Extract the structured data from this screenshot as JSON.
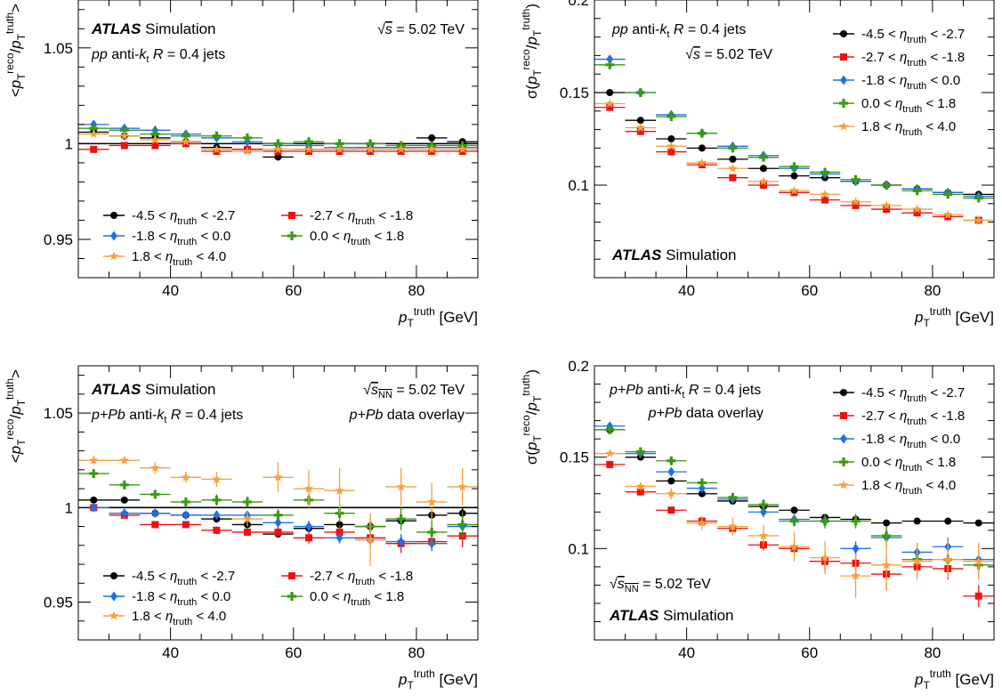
{
  "chart_data": [
    {
      "id": "tl",
      "type": "scatter",
      "ylabel_markup": "<p_T^{reco}/p_T^{truth}>",
      "xlabel_markup": "p_T^{truth} [GeV]",
      "xlim": [
        25,
        90
      ],
      "ylim": [
        0.93,
        1.075
      ],
      "xticks": [
        40,
        60,
        80
      ],
      "yticks": [
        0.95,
        1,
        1.05
      ],
      "ytick_labels": [
        "0.95",
        "1",
        "1.05"
      ],
      "reference_line": 1.0,
      "annotations": {
        "atlas": "ATLAS",
        "simulation": "Simulation",
        "energy": "√s = 5.02 TeV",
        "jets": "pp anti-kt R = 0.4 jets"
      },
      "legend": {
        "placement": "lower-left",
        "columns": 2,
        "entries": [
          {
            "label": "-4.5 < η_truth < -2.7",
            "series": 0
          },
          {
            "label": "-2.7 < η_truth < -1.8",
            "series": 1
          },
          {
            "label": "-1.8 < η_truth < 0.0",
            "series": 2
          },
          {
            "label": "0.0 < η_truth < 1.8",
            "series": 3
          },
          {
            "label": "1.8 < η_truth < 4.0",
            "series": 4
          }
        ]
      },
      "x": [
        27.5,
        32.5,
        37.5,
        42.5,
        47.5,
        52.5,
        57.5,
        62.5,
        67.5,
        72.5,
        77.5,
        82.5,
        87.5
      ],
      "series": [
        {
          "name": "-4.5 < η_truth < -2.7",
          "color": "#000000",
          "marker": "circle",
          "values": [
            1.006,
            1.004,
            1.003,
            1.001,
            0.998,
            0.997,
            0.993,
            0.997,
            0.997,
            0.998,
            0.998,
            1.003,
            1.001
          ]
        },
        {
          "name": "-2.7 < η_truth < -1.8",
          "color": "#ee1111",
          "marker": "square",
          "values": [
            0.997,
            0.999,
            0.999,
            1.0,
            0.996,
            0.997,
            0.996,
            0.996,
            0.996,
            0.996,
            0.996,
            0.996,
            0.996
          ]
        },
        {
          "name": "-1.8 < η_truth < 0.0",
          "color": "#1f6fe8",
          "marker": "diamond",
          "values": [
            1.01,
            1.008,
            1.007,
            1.005,
            1.003,
            1.001,
            0.999,
            0.999,
            0.998,
            0.998,
            0.998,
            0.998,
            0.998
          ]
        },
        {
          "name": "0.0 < η_truth < 1.8",
          "color": "#3b9a14",
          "marker": "cross",
          "values": [
            1.008,
            1.007,
            1.005,
            1.004,
            1.004,
            1.003,
            1.0,
            1.001,
            1.0,
            1.0,
            0.999,
            0.999,
            0.999
          ]
        },
        {
          "name": "1.8 < η_truth < 4.0",
          "color": "#f5a040",
          "marker": "star",
          "values": [
            1.005,
            1.004,
            1.002,
            1.001,
            0.997,
            0.996,
            0.997,
            0.997,
            0.997,
            0.997,
            0.997,
            0.997,
            0.997
          ]
        }
      ]
    },
    {
      "id": "tr",
      "type": "scatter",
      "ylabel_markup": "σ(p_T^{reco}/p_T^{truth})",
      "xlabel_markup": "p_T^{truth} [GeV]",
      "xlim": [
        25,
        90
      ],
      "ylim": [
        0.05,
        0.2
      ],
      "xticks": [
        40,
        60,
        80
      ],
      "yticks": [
        0.1,
        0.15,
        0.2
      ],
      "ytick_labels": [
        "0.1",
        "0.15",
        "0.2"
      ],
      "annotations": {
        "jets": "pp anti-kt R = 0.4 jets",
        "energy": "√s = 5.02 TeV",
        "atlas": "ATLAS",
        "simulation": "Simulation"
      },
      "legend": {
        "placement": "top-right",
        "columns": 1,
        "entries": [
          {
            "label": "-4.5 < η_truth < -2.7",
            "series": 0
          },
          {
            "label": "-2.7 < η_truth < -1.8",
            "series": 1
          },
          {
            "label": "-1.8 < η_truth < 0.0",
            "series": 2
          },
          {
            "label": "0.0 < η_truth < 1.8",
            "series": 3
          },
          {
            "label": "1.8 < η_truth < 4.0",
            "series": 4
          }
        ]
      },
      "x": [
        27.5,
        32.5,
        37.5,
        42.5,
        47.5,
        52.5,
        57.5,
        62.5,
        67.5,
        72.5,
        77.5,
        82.5,
        87.5
      ],
      "series": [
        {
          "name": "-4.5 < η_truth < -2.7",
          "color": "#000000",
          "marker": "circle",
          "values": [
            0.15,
            0.135,
            0.125,
            0.12,
            0.114,
            0.109,
            0.105,
            0.104,
            0.102,
            0.1,
            0.098,
            0.096,
            0.095
          ]
        },
        {
          "name": "-2.7 < η_truth < -1.8",
          "color": "#ee1111",
          "marker": "square",
          "values": [
            0.142,
            0.129,
            0.118,
            0.111,
            0.104,
            0.1,
            0.096,
            0.092,
            0.089,
            0.087,
            0.085,
            0.083,
            0.081
          ]
        },
        {
          "name": "-1.8 < η_truth < 0.0",
          "color": "#1f6fe8",
          "marker": "diamond",
          "values": [
            0.168,
            0.15,
            0.138,
            0.128,
            0.121,
            0.116,
            0.109,
            0.106,
            0.102,
            0.1,
            0.098,
            0.096,
            0.094
          ]
        },
        {
          "name": "0.0 < η_truth < 1.8",
          "color": "#3b9a14",
          "marker": "cross",
          "values": [
            0.165,
            0.15,
            0.137,
            0.128,
            0.12,
            0.115,
            0.11,
            0.107,
            0.103,
            0.1,
            0.097,
            0.095,
            0.093
          ]
        },
        {
          "name": "1.8 < η_truth < 4.0",
          "color": "#f5a040",
          "marker": "star",
          "values": [
            0.144,
            0.131,
            0.121,
            0.112,
            0.109,
            0.102,
            0.097,
            0.095,
            0.091,
            0.089,
            0.087,
            0.084,
            0.081
          ]
        }
      ]
    },
    {
      "id": "bl",
      "type": "scatter",
      "ylabel_markup": "<p_T^{reco}/p_T^{truth}>",
      "xlabel_markup": "p_T^{truth} [GeV]",
      "xlim": [
        25,
        90
      ],
      "ylim": [
        0.93,
        1.075
      ],
      "xticks": [
        40,
        60,
        80
      ],
      "yticks": [
        0.95,
        1,
        1.05
      ],
      "ytick_labels": [
        "0.95",
        "1",
        "1.05"
      ],
      "reference_line": 1.0,
      "annotations": {
        "atlas": "ATLAS",
        "simulation": "Simulation",
        "energy": "√s_NN = 5.02 TeV",
        "jets": "p+Pb anti-kt R = 0.4 jets",
        "overlay": "p+Pb data overlay"
      },
      "legend": {
        "placement": "lower-left",
        "columns": 2,
        "entries": [
          {
            "label": "-4.5 < η_truth < -2.7",
            "series": 0
          },
          {
            "label": "-2.7 < η_truth < -1.8",
            "series": 1
          },
          {
            "label": "-1.8 < η_truth < 0.0",
            "series": 2
          },
          {
            "label": "0.0 < η_truth < 1.8",
            "series": 3
          },
          {
            "label": "1.8 < η_truth < 4.0",
            "series": 4
          }
        ]
      },
      "x": [
        27.5,
        32.5,
        37.5,
        42.5,
        47.5,
        52.5,
        57.5,
        62.5,
        67.5,
        72.5,
        77.5,
        82.5,
        87.5
      ],
      "series": [
        {
          "name": "-4.5 < η_truth < -2.7",
          "color": "#000000",
          "marker": "circle",
          "values": [
            1.004,
            1.004,
            0.997,
            0.996,
            0.994,
            0.991,
            0.986,
            0.989,
            0.991,
            0.99,
            0.993,
            0.996,
            0.997
          ],
          "errors": [
            0.001,
            0.001,
            0.001,
            0.001,
            0.002,
            0.002,
            0.002,
            0.002,
            0.002,
            0.003,
            0.003,
            0.003,
            0.003
          ]
        },
        {
          "name": "-2.7 < η_truth < -1.8",
          "color": "#ee1111",
          "marker": "square",
          "values": [
            1.0,
            0.996,
            0.991,
            0.991,
            0.988,
            0.987,
            0.987,
            0.984,
            0.987,
            0.984,
            0.981,
            0.982,
            0.985
          ],
          "errors": [
            0.001,
            0.001,
            0.001,
            0.001,
            0.002,
            0.002,
            0.003,
            0.003,
            0.004,
            0.005,
            0.005,
            0.005,
            0.006
          ]
        },
        {
          "name": "-1.8 < η_truth < 0.0",
          "color": "#1f6fe8",
          "marker": "diamond",
          "values": [
            1.0,
            0.997,
            0.997,
            0.996,
            0.996,
            0.996,
            0.992,
            0.99,
            0.984,
            0.983,
            0.982,
            0.981,
            0.99
          ],
          "errors": [
            0.001,
            0.001,
            0.001,
            0.001,
            0.002,
            0.002,
            0.002,
            0.003,
            0.003,
            0.003,
            0.004,
            0.004,
            0.004
          ]
        },
        {
          "name": "0.0 < η_truth < 1.8",
          "color": "#3b9a14",
          "marker": "cross",
          "values": [
            1.018,
            1.012,
            1.007,
            1.003,
            1.004,
            1.003,
            0.996,
            1.004,
            0.997,
            0.99,
            0.994,
            0.987,
            0.991
          ],
          "errors": [
            0.002,
            0.002,
            0.002,
            0.002,
            0.003,
            0.003,
            0.003,
            0.004,
            0.005,
            0.006,
            0.006,
            0.007,
            0.007
          ]
        },
        {
          "name": "1.8 < η_truth < 4.0",
          "color": "#f5a040",
          "marker": "star",
          "values": [
            1.025,
            1.025,
            1.021,
            1.016,
            1.015,
            0.994,
            1.016,
            1.01,
            1.009,
            0.983,
            1.011,
            1.003,
            1.011
          ],
          "errors": [
            0.002,
            0.002,
            0.003,
            0.003,
            0.004,
            0.004,
            0.008,
            0.01,
            0.012,
            0.014,
            0.01,
            0.01,
            0.01
          ]
        }
      ]
    },
    {
      "id": "br",
      "type": "scatter",
      "ylabel_markup": "σ(p_T^{reco}/p_T^{truth})",
      "xlabel_markup": "p_T^{truth} [GeV]",
      "xlim": [
        25,
        90
      ],
      "ylim": [
        0.05,
        0.2
      ],
      "xticks": [
        40,
        60,
        80
      ],
      "yticks": [
        0.1,
        0.15,
        0.2
      ],
      "ytick_labels": [
        "0.1",
        "0.15",
        "0.2"
      ],
      "annotations": {
        "jets": "p+Pb anti-kt R = 0.4 jets",
        "overlay": "p+Pb data overlay",
        "energy": "√s_NN = 5.02 TeV",
        "atlas": "ATLAS",
        "simulation": "Simulation"
      },
      "legend": {
        "placement": "top-right",
        "columns": 1,
        "entries": [
          {
            "label": "-4.5 < η_truth < -2.7",
            "series": 0
          },
          {
            "label": "-2.7 < η_truth < -1.8",
            "series": 1
          },
          {
            "label": "-1.8 < η_truth < 0.0",
            "series": 2
          },
          {
            "label": "0.0 < η_truth < 1.8",
            "series": 3
          },
          {
            "label": "1.8 < η_truth < 4.0",
            "series": 4
          }
        ]
      },
      "x": [
        27.5,
        32.5,
        37.5,
        42.5,
        47.5,
        52.5,
        57.5,
        62.5,
        67.5,
        72.5,
        77.5,
        82.5,
        87.5
      ],
      "series": [
        {
          "name": "-4.5 < η_truth < -2.7",
          "color": "#000000",
          "marker": "circle",
          "values": [
            0.165,
            0.15,
            0.137,
            0.13,
            0.126,
            0.123,
            0.121,
            0.117,
            0.116,
            0.114,
            0.115,
            0.115,
            0.114
          ],
          "errors": [
            0.001,
            0.001,
            0.001,
            0.001,
            0.001,
            0.001,
            0.001,
            0.001,
            0.001,
            0.001,
            0.001,
            0.001,
            0.001
          ]
        },
        {
          "name": "-2.7 < η_truth < -1.8",
          "color": "#ee1111",
          "marker": "square",
          "values": [
            0.146,
            0.131,
            0.121,
            0.115,
            0.111,
            0.102,
            0.1,
            0.093,
            0.092,
            0.086,
            0.09,
            0.089,
            0.074
          ],
          "errors": [
            0.001,
            0.001,
            0.001,
            0.002,
            0.002,
            0.003,
            0.004,
            0.005,
            0.007,
            0.009,
            0.005,
            0.006,
            0.006
          ]
        },
        {
          "name": "-1.8 < η_truth < 0.0",
          "color": "#1f6fe8",
          "marker": "diamond",
          "values": [
            0.167,
            0.152,
            0.142,
            0.133,
            0.127,
            0.12,
            0.116,
            0.115,
            0.1,
            0.106,
            0.098,
            0.101,
            0.094
          ],
          "errors": [
            0.001,
            0.001,
            0.002,
            0.002,
            0.002,
            0.003,
            0.003,
            0.003,
            0.004,
            0.005,
            0.005,
            0.005,
            0.005
          ]
        },
        {
          "name": "0.0 < η_truth < 1.8",
          "color": "#3b9a14",
          "marker": "cross",
          "values": [
            0.165,
            0.153,
            0.148,
            0.136,
            0.128,
            0.124,
            0.115,
            0.115,
            0.115,
            0.107,
            0.094,
            0.094,
            0.091
          ],
          "errors": [
            0.001,
            0.001,
            0.002,
            0.002,
            0.002,
            0.003,
            0.003,
            0.004,
            0.004,
            0.005,
            0.005,
            0.006,
            0.006
          ]
        },
        {
          "name": "1.8 < η_truth < 4.0",
          "color": "#f5a040",
          "marker": "star",
          "values": [
            0.152,
            0.134,
            0.13,
            0.114,
            0.112,
            0.107,
            0.101,
            0.095,
            0.085,
            0.091,
            0.093,
            0.094,
            0.093
          ],
          "errors": [
            0.001,
            0.002,
            0.003,
            0.004,
            0.005,
            0.006,
            0.008,
            0.009,
            0.012,
            0.014,
            0.01,
            0.01,
            0.01
          ]
        }
      ]
    }
  ]
}
